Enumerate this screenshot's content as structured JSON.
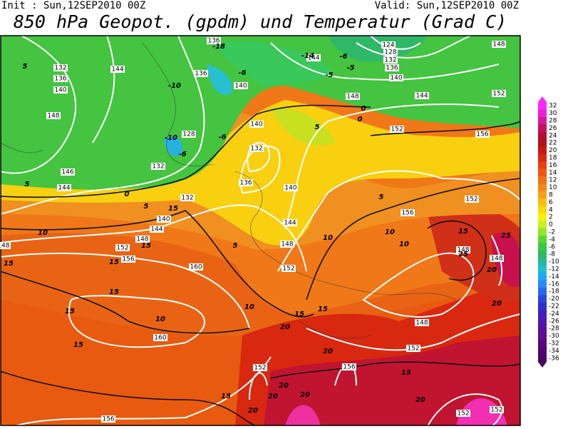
{
  "header": {
    "init": "Init : Sun,12SEP2010 00Z",
    "valid": "Valid: Sun,12SEP2010 00Z",
    "title": "850 hPa Geopot. (gpdm) und Temperatur (Grad C)"
  },
  "colorbar": {
    "values": [
      32,
      30,
      28,
      26,
      24,
      22,
      20,
      18,
      16,
      14,
      12,
      10,
      8,
      6,
      4,
      2,
      0,
      -2,
      -4,
      -6,
      -8,
      -10,
      -12,
      -14,
      -16,
      -18,
      -20,
      -22,
      -24,
      -26,
      -28,
      -30,
      -32,
      -34,
      -36
    ],
    "colors": [
      "#ff28ff",
      "#f020d8",
      "#d8189c",
      "#c41060",
      "#b80c30",
      "#b41018",
      "#c81810",
      "#d82810",
      "#e84010",
      "#f05810",
      "#f07018",
      "#f08818",
      "#f8a018",
      "#f8c010",
      "#f8d810",
      "#f8f010",
      "#c8f020",
      "#90e828",
      "#58d830",
      "#38c840",
      "#30b860",
      "#28b898",
      "#20c0d0",
      "#20a8f0",
      "#2888f8",
      "#2868f0",
      "#2848e0",
      "#3030d0",
      "#4020c0",
      "#5018b0",
      "#5810a0",
      "#600c90",
      "#580880",
      "#500870",
      "#480860"
    ]
  },
  "geopotential_labels": [
    132,
    136,
    140,
    144,
    148,
    146,
    144,
    136,
    136,
    140,
    128,
    132,
    140,
    132,
    136,
    132,
    140,
    144,
    148,
    152,
    156,
    160,
    160,
    156,
    152,
    156,
    152,
    148,
    152,
    148,
    144,
    140,
    144,
    148,
    152,
    156,
    156,
    152,
    148,
    148,
    144,
    152,
    148,
    140,
    136,
    124,
    128,
    132,
    152,
    152,
    148
  ],
  "temperature_labels": [
    -10,
    -10,
    -6,
    -6,
    -6,
    -5,
    -5,
    -18,
    -14,
    -6,
    0,
    0,
    0,
    5,
    5,
    5,
    5,
    10,
    10,
    10,
    10,
    10,
    10,
    15,
    15,
    15,
    15,
    15,
    15,
    15,
    15,
    15,
    15,
    15,
    15,
    20,
    20,
    20,
    20,
    20,
    20,
    20,
    20,
    20,
    25,
    25,
    5,
    5
  ]
}
